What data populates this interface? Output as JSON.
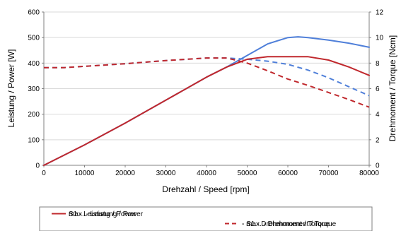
{
  "chart_data": {
    "type": "line",
    "xlabel": "Drehzahl / Speed [rpm]",
    "ylabel_left": "Leistung / Power [W]",
    "ylabel_right": "Drehmoment / Torque [Ncm]",
    "xlim": [
      0,
      80000
    ],
    "ylim_left": [
      0,
      600
    ],
    "ylim_right": [
      0,
      12
    ],
    "x_ticks": [
      "0",
      "10000",
      "20000",
      "30000",
      "40000",
      "50000",
      "60000",
      "70000",
      "80000"
    ],
    "y_left_ticks": [
      "0",
      "100",
      "200",
      "300",
      "400",
      "500",
      "600"
    ],
    "y_right_ticks": [
      "0",
      "2",
      "4",
      "6",
      "8",
      "10",
      "12"
    ],
    "grid": true,
    "legend_position": "bottom",
    "series": [
      {
        "name": "max. - Leistung / Power",
        "axis": "left",
        "color": "#4f7fd9",
        "dash": "solid",
        "x": [
          0,
          10000,
          20000,
          30000,
          40000,
          45000,
          50000,
          55000,
          60000,
          62500,
          65000,
          70000,
          75000,
          80000
        ],
        "y": [
          0,
          80,
          165,
          255,
          345,
          385,
          430,
          475,
          500,
          503,
          500,
          490,
          478,
          462
        ]
      },
      {
        "name": "- max. - Drehmoment / Torque",
        "axis": "right",
        "color": "#4f7fd9",
        "dash": "dashed",
        "x": [
          0,
          5000,
          10000,
          20000,
          30000,
          40000,
          45000,
          50000,
          55000,
          60000,
          65000,
          70000,
          75000,
          80000
        ],
        "y": [
          7.65,
          7.65,
          7.75,
          7.95,
          8.2,
          8.4,
          8.4,
          8.3,
          8.15,
          7.9,
          7.45,
          6.85,
          6.15,
          5.45
        ]
      },
      {
        "name": "S1 - Leistung / Power",
        "axis": "left",
        "color": "#c0282d",
        "dash": "solid",
        "x": [
          0,
          10000,
          20000,
          30000,
          40000,
          45000,
          50000,
          55000,
          60000,
          65000,
          70000,
          75000,
          80000
        ],
        "y": [
          0,
          80,
          165,
          255,
          345,
          385,
          415,
          425,
          425,
          425,
          412,
          385,
          352
        ]
      },
      {
        "name": "- S1 - Drehmoment / Torque",
        "axis": "right",
        "color": "#c0282d",
        "dash": "dashed",
        "x": [
          0,
          5000,
          10000,
          20000,
          30000,
          40000,
          45000,
          50000,
          55000,
          60000,
          65000,
          70000,
          75000,
          80000
        ],
        "y": [
          7.65,
          7.65,
          7.75,
          7.95,
          8.2,
          8.4,
          8.4,
          8.0,
          7.4,
          6.75,
          6.25,
          5.7,
          5.15,
          4.55
        ]
      }
    ]
  }
}
